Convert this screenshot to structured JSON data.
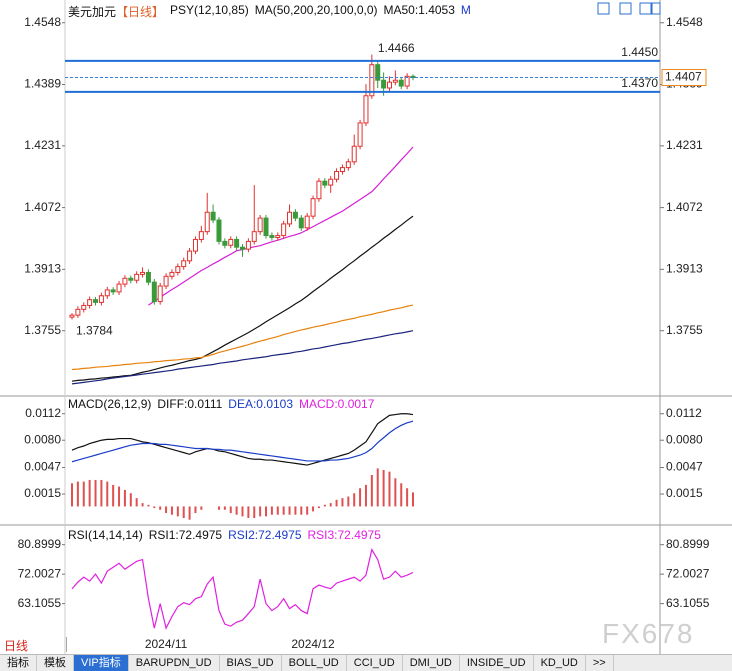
{
  "chart_data": [
    {
      "type": "candlestick",
      "title": "美元加元",
      "period": "【日线】",
      "indicators": [
        "PSY(12,10,85)",
        "MA(50,200,20,100,0,0)",
        "MA50:1.4053",
        "M"
      ],
      "ylim": [
        1.3592,
        1.4586
      ],
      "yticks": [
        1.4548,
        1.4389,
        1.4231,
        1.4072,
        1.3913,
        1.3755
      ],
      "up_color": "#e0302f",
      "down_color": "#3a9a3a",
      "ohlc": [
        [
          1.379,
          1.38,
          1.3784,
          1.3795
        ],
        [
          1.3795,
          1.3818,
          1.3788,
          1.381
        ],
        [
          1.381,
          1.3828,
          1.3802,
          1.382
        ],
        [
          1.382,
          1.3843,
          1.3812,
          1.3835
        ],
        [
          1.3835,
          1.3842,
          1.382,
          1.3828
        ],
        [
          1.3828,
          1.3853,
          1.382,
          1.3845
        ],
        [
          1.3845,
          1.3868,
          1.3837,
          1.386
        ],
        [
          1.386,
          1.3867,
          1.3847,
          1.3855
        ],
        [
          1.3855,
          1.3883,
          1.3847,
          1.3875
        ],
        [
          1.3875,
          1.3898,
          1.3867,
          1.389
        ],
        [
          1.389,
          1.3897,
          1.3877,
          1.3885
        ],
        [
          1.3885,
          1.3908,
          1.3877,
          1.39
        ],
        [
          1.39,
          1.3918,
          1.3892,
          1.3905
        ],
        [
          1.3905,
          1.3913,
          1.3872,
          1.388
        ],
        [
          1.388,
          1.3888,
          1.3822,
          1.383
        ],
        [
          1.383,
          1.3878,
          1.3822,
          1.387
        ],
        [
          1.387,
          1.3903,
          1.3862,
          1.3895
        ],
        [
          1.3895,
          1.3913,
          1.3887,
          1.3905
        ],
        [
          1.3905,
          1.3928,
          1.3897,
          1.392
        ],
        [
          1.392,
          1.3943,
          1.3912,
          1.3935
        ],
        [
          1.3935,
          1.3968,
          1.3927,
          1.396
        ],
        [
          1.396,
          1.3998,
          1.3952,
          1.399
        ],
        [
          1.399,
          1.4025,
          1.3982,
          1.401
        ],
        [
          1.401,
          1.411,
          1.4002,
          1.406
        ],
        [
          1.406,
          1.408,
          1.4032,
          1.404
        ],
        [
          1.404,
          1.4048,
          1.3977,
          1.3985
        ],
        [
          1.3985,
          1.3993,
          1.3967,
          1.3975
        ],
        [
          1.3975,
          1.3998,
          1.3967,
          1.399
        ],
        [
          1.399,
          1.3998,
          1.3962,
          1.397
        ],
        [
          1.397,
          1.3978,
          1.3945,
          1.3965
        ],
        [
          1.3965,
          1.3993,
          1.3957,
          1.3985
        ],
        [
          1.3985,
          1.413,
          1.3977,
          1.401
        ],
        [
          1.401,
          1.4053,
          1.4002,
          1.4045
        ],
        [
          1.4045,
          1.4053,
          1.3992,
          1.4
        ],
        [
          1.4,
          1.4008,
          1.3987,
          1.3995
        ],
        [
          1.3995,
          1.4008,
          1.3987,
          1.4
        ],
        [
          1.4,
          1.4038,
          1.3992,
          1.403
        ],
        [
          1.403,
          1.408,
          1.4022,
          1.406
        ],
        [
          1.406,
          1.4068,
          1.4037,
          1.4045
        ],
        [
          1.4045,
          1.4053,
          1.4012,
          1.402
        ],
        [
          1.402,
          1.4058,
          1.4012,
          1.405
        ],
        [
          1.405,
          1.4103,
          1.4042,
          1.4095
        ],
        [
          1.4095,
          1.4148,
          1.4087,
          1.414
        ],
        [
          1.414,
          1.4148,
          1.4122,
          1.413
        ],
        [
          1.413,
          1.4153,
          1.411,
          1.4145
        ],
        [
          1.4145,
          1.4173,
          1.4137,
          1.4165
        ],
        [
          1.4165,
          1.4183,
          1.4157,
          1.4175
        ],
        [
          1.4175,
          1.4198,
          1.4167,
          1.419
        ],
        [
          1.419,
          1.426,
          1.4182,
          1.423
        ],
        [
          1.423,
          1.4298,
          1.4222,
          1.429
        ],
        [
          1.429,
          1.439,
          1.4282,
          1.436
        ],
        [
          1.436,
          1.4466,
          1.4352,
          1.444
        ],
        [
          1.444,
          1.4448,
          1.438,
          1.44
        ],
        [
          1.44,
          1.442,
          1.436,
          1.438
        ],
        [
          1.438,
          1.441,
          1.4372,
          1.4395
        ],
        [
          1.4395,
          1.4425,
          1.4387,
          1.44
        ],
        [
          1.44,
          1.4408,
          1.4377,
          1.4385
        ],
        [
          1.4385,
          1.4418,
          1.4377,
          1.441
        ],
        [
          1.441,
          1.4415,
          1.44,
          1.4407
        ]
      ],
      "series": [
        {
          "color": "#111111",
          "values": [
            1.3625,
            1.3627,
            1.3628,
            1.363,
            1.3631,
            1.3633,
            1.3634,
            1.3636,
            1.3637,
            1.3639,
            1.364,
            1.3644,
            1.3648,
            1.3651,
            1.3655,
            1.3659,
            1.3663,
            1.3666,
            1.367,
            1.3674,
            1.3678,
            1.3681,
            1.3685,
            1.3693,
            1.3701,
            1.3709,
            1.3718,
            1.3726,
            1.3734,
            1.3742,
            1.375,
            1.3759,
            1.3768,
            1.3778,
            1.3787,
            1.3796,
            1.3805,
            1.3814,
            1.3824,
            1.3833,
            1.3844,
            1.3856,
            1.3867,
            1.3878,
            1.389,
            1.3901,
            1.3912,
            1.3924,
            1.3935,
            1.3947,
            1.3958,
            1.397,
            1.3981,
            1.3993,
            1.4004,
            1.4016,
            1.4027,
            1.4039,
            1.405
          ]
        },
        {
          "color": "#e8820c",
          "values": [
            1.3655,
            1.3656,
            1.3658,
            1.3659,
            1.3661,
            1.3662,
            1.3663,
            1.3665,
            1.3666,
            1.3668,
            1.3669,
            1.3671,
            1.3672,
            1.3673,
            1.3675,
            1.3676,
            1.3678,
            1.3679,
            1.368,
            1.3682,
            1.3683,
            1.3685,
            1.3686,
            1.369,
            1.3694,
            1.3699,
            1.3703,
            1.3707,
            1.3711,
            1.3715,
            1.3719,
            1.3724,
            1.3728,
            1.3732,
            1.3736,
            1.374,
            1.3745,
            1.3749,
            1.3753,
            1.3757,
            1.376,
            1.3764,
            1.3767,
            1.377,
            1.3774,
            1.3777,
            1.3781,
            1.3784,
            1.3787,
            1.3791,
            1.3794,
            1.3797,
            1.3801,
            1.3804,
            1.3808,
            1.3811,
            1.3814,
            1.3818,
            1.3821
          ]
        },
        {
          "color": "#1a237e",
          "values": [
            1.3618,
            1.362,
            1.3622,
            1.3624,
            1.3626,
            1.3628,
            1.3631,
            1.3633,
            1.3635,
            1.3637,
            1.3639,
            1.3641,
            1.3643,
            1.3645,
            1.3647,
            1.3649,
            1.3651,
            1.3653,
            1.3656,
            1.3658,
            1.366,
            1.3662,
            1.3664,
            1.3666,
            1.3668,
            1.3671,
            1.3673,
            1.3675,
            1.3677,
            1.368,
            1.3682,
            1.3684,
            1.3686,
            1.3688,
            1.3691,
            1.3693,
            1.3695,
            1.3697,
            1.37,
            1.3702,
            1.3705,
            1.3708,
            1.371,
            1.3713,
            1.3716,
            1.3719,
            1.3722,
            1.3724,
            1.3727,
            1.373,
            1.3733,
            1.3735,
            1.3738,
            1.3741,
            1.3744,
            1.3747,
            1.3749,
            1.3752,
            1.3755
          ]
        },
        {
          "color": "#d61fd6",
          "values": [
            null,
            null,
            null,
            null,
            null,
            null,
            null,
            null,
            null,
            null,
            null,
            null,
            null,
            1.3821,
            1.3831,
            1.3841,
            1.3851,
            1.3861,
            1.387,
            1.388,
            1.389,
            1.39,
            1.391,
            1.3918,
            1.3927,
            1.3935,
            1.3944,
            1.3952,
            1.3961,
            1.3964,
            1.3968,
            1.3971,
            1.3974,
            1.3979,
            1.3984,
            1.3988,
            1.3993,
            1.3998,
            1.4002,
            1.4007,
            1.4015,
            1.4023,
            1.4031,
            1.4039,
            1.4047,
            1.4055,
            1.4063,
            1.4073,
            1.4083,
            1.4093,
            1.4103,
            1.4113,
            1.4129,
            1.4146,
            1.4162,
            1.4178,
            1.4195,
            1.4211,
            1.4228
          ]
        }
      ],
      "hlines": [
        {
          "value": 1.445,
          "label": "1.4450"
        },
        {
          "value": 1.437,
          "label": "1.4370"
        }
      ],
      "hline_color": "#1f6fd6",
      "last_price": {
        "value": 1.4407,
        "label": "1.4407"
      },
      "last_price_color": "#f08a18",
      "high_label": "1.4466",
      "low_label": "1.3784"
    },
    {
      "type": "macd",
      "legend": [
        "MACD(26,12,9)",
        "DIFF:0.0111",
        "DEA:0.0103",
        "MACD:0.0017"
      ],
      "legend_colors": [
        "#111111",
        "#111111",
        "#1a3cc8",
        "#e020e0"
      ],
      "ylim": [
        -0.002,
        0.0131
      ],
      "yticks": [
        0.0112,
        {
          "value": 0.008,
          "label": "0.0080"
        },
        0.0047,
        0.0015
      ],
      "series": [
        {
          "color": "#111111",
          "values": [
            0.0068,
            0.0071,
            0.0073,
            0.0076,
            0.0078,
            0.008,
            0.0081,
            0.0081,
            0.0082,
            0.0082,
            0.0082,
            0.008,
            0.0078,
            0.0077,
            0.0075,
            0.0073,
            0.0071,
            0.0069,
            0.0067,
            0.0065,
            0.0063,
            0.0066,
            0.0068,
            0.007,
            0.0069,
            0.0067,
            0.0066,
            0.0064,
            0.0062,
            0.006,
            0.0058,
            0.0057,
            0.0057,
            0.0056,
            0.0056,
            0.0055,
            0.0054,
            0.0053,
            0.0052,
            0.0051,
            0.005,
            0.0052,
            0.0054,
            0.0056,
            0.0058,
            0.006,
            0.0062,
            0.0064,
            0.0068,
            0.0073,
            0.0078,
            0.0089,
            0.01,
            0.0105,
            0.011,
            0.0111,
            0.0112,
            0.0112,
            0.0111
          ]
        },
        {
          "color": "#1a3cc8",
          "values": [
            0.0054,
            0.0056,
            0.0058,
            0.006,
            0.0062,
            0.0064,
            0.0066,
            0.0068,
            0.007,
            0.0072,
            0.0074,
            0.0075,
            0.0076,
            0.0076,
            0.0076,
            0.0075,
            0.0075,
            0.0074,
            0.0073,
            0.0072,
            0.0071,
            0.007,
            0.007,
            0.007,
            0.0069,
            0.0069,
            0.0068,
            0.0068,
            0.0067,
            0.0066,
            0.0065,
            0.0064,
            0.0063,
            0.0062,
            0.0061,
            0.006,
            0.0059,
            0.0058,
            0.0057,
            0.0056,
            0.0055,
            0.0055,
            0.0055,
            0.0055,
            0.0056,
            0.0056,
            0.0057,
            0.0058,
            0.006,
            0.0062,
            0.0065,
            0.007,
            0.0077,
            0.0083,
            0.0089,
            0.0094,
            0.0098,
            0.0101,
            0.0103
          ]
        }
      ],
      "histogram": {
        "color": "#e05050",
        "values": [
          0.0028,
          0.003,
          0.003,
          0.0032,
          0.0032,
          0.0032,
          0.003,
          0.0026,
          0.0024,
          0.002,
          0.0016,
          0.001,
          0.0004,
          0.0002,
          -0.0002,
          -0.0004,
          -0.0008,
          -0.001,
          -0.0012,
          -0.0014,
          -0.0016,
          -0.0008,
          -0.0004,
          0,
          0,
          -0.0004,
          -0.0004,
          -0.0008,
          -0.001,
          -0.0012,
          -0.0014,
          -0.0014,
          -0.0012,
          -0.0012,
          -0.001,
          -0.001,
          -0.001,
          -0.001,
          -0.001,
          -0.001,
          -0.001,
          -0.0006,
          -0.0002,
          0.0002,
          0.0004,
          0.0008,
          0.001,
          0.0012,
          0.0016,
          0.0022,
          0.0026,
          0.0038,
          0.0046,
          0.0044,
          0.0042,
          0.0034,
          0.0028,
          0.0022,
          0.0017
        ]
      }
    },
    {
      "type": "rsi",
      "legend": [
        "RSI(14,14,14)",
        "RSI1:72.4975",
        "RSI2:72.4975",
        "RSI3:72.4975"
      ],
      "legend_colors": [
        "#111111",
        "#111111",
        "#1a3cc8",
        "#e020e0"
      ],
      "ylim": [
        52.72,
        85.94
      ],
      "yticks": [
        80.8999,
        72.0027,
        63.1055
      ],
      "color": "#e020e0",
      "values": [
        67.55,
        69.6,
        71.1,
        69.9,
        72.0,
        69.3,
        72.9,
        74.1,
        75.3,
        73.5,
        74.7,
        75.9,
        76.4,
        64.6,
        55.7,
        63.1,
        55.7,
        59.2,
        62.2,
        63.4,
        62.8,
        64.6,
        65.2,
        69.0,
        71.1,
        61.0,
        56.9,
        56.3,
        57.5,
        58.1,
        60.1,
        62.2,
        70.5,
        63.1,
        61.0,
        62.2,
        64.6,
        61.6,
        62.8,
        61.0,
        60.1,
        67.6,
        68.7,
        68.1,
        67.6,
        69.3,
        69.9,
        70.5,
        71.1,
        69.9,
        71.7,
        79.4,
        76.4,
        70.5,
        71.1,
        72.9,
        71.1,
        71.7,
        72.4975
      ],
      "categories": [
        null,
        null,
        null,
        null,
        null,
        null,
        null,
        null,
        null,
        null,
        null,
        null,
        null,
        null,
        null,
        null,
        "2024/11",
        null,
        null,
        null,
        null,
        null,
        null,
        null,
        null,
        null,
        null,
        null,
        null,
        null,
        null,
        null,
        null,
        null,
        null,
        null,
        null,
        null,
        null,
        null,
        null,
        "2024/12",
        null,
        null,
        null,
        null,
        null,
        null,
        null,
        null,
        null,
        null,
        null,
        null,
        null,
        null,
        null,
        null,
        null
      ]
    }
  ],
  "period_tab": "日线",
  "tabs": [
    "指标",
    "模板",
    "VIP指标",
    "BARUPDN_UD",
    "BIAS_UD",
    "BOLL_UD",
    "CCI_UD",
    "DMI_UD",
    "INSIDE_UD",
    "KD_UD",
    ">>"
  ],
  "watermark": "FX678"
}
